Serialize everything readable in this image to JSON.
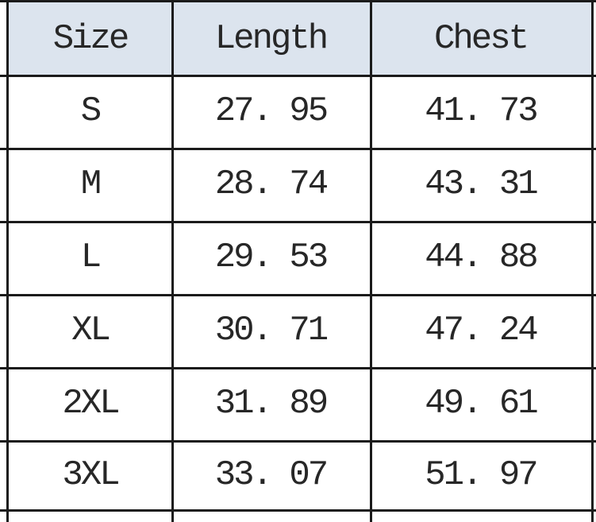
{
  "table": {
    "columns": [
      "Size",
      "Length",
      "Chest"
    ],
    "rows": [
      {
        "size": "S",
        "length": "27. 95",
        "chest": "41. 73"
      },
      {
        "size": "M",
        "length": "28. 74",
        "chest": "43. 31"
      },
      {
        "size": "L",
        "length": "29. 53",
        "chest": "44. 88"
      },
      {
        "size": "XL",
        "length": "30. 71",
        "chest": "47. 24"
      },
      {
        "size": "2XL",
        "length": "31. 89",
        "chest": "49. 61"
      },
      {
        "size": "3XL",
        "length": "33. 07",
        "chest": "51. 97"
      }
    ]
  },
  "colors": {
    "header_background": "#dce4ee",
    "grid_line": "#1b1b1b",
    "text": "#272727",
    "cell_background": "#ffffff"
  }
}
